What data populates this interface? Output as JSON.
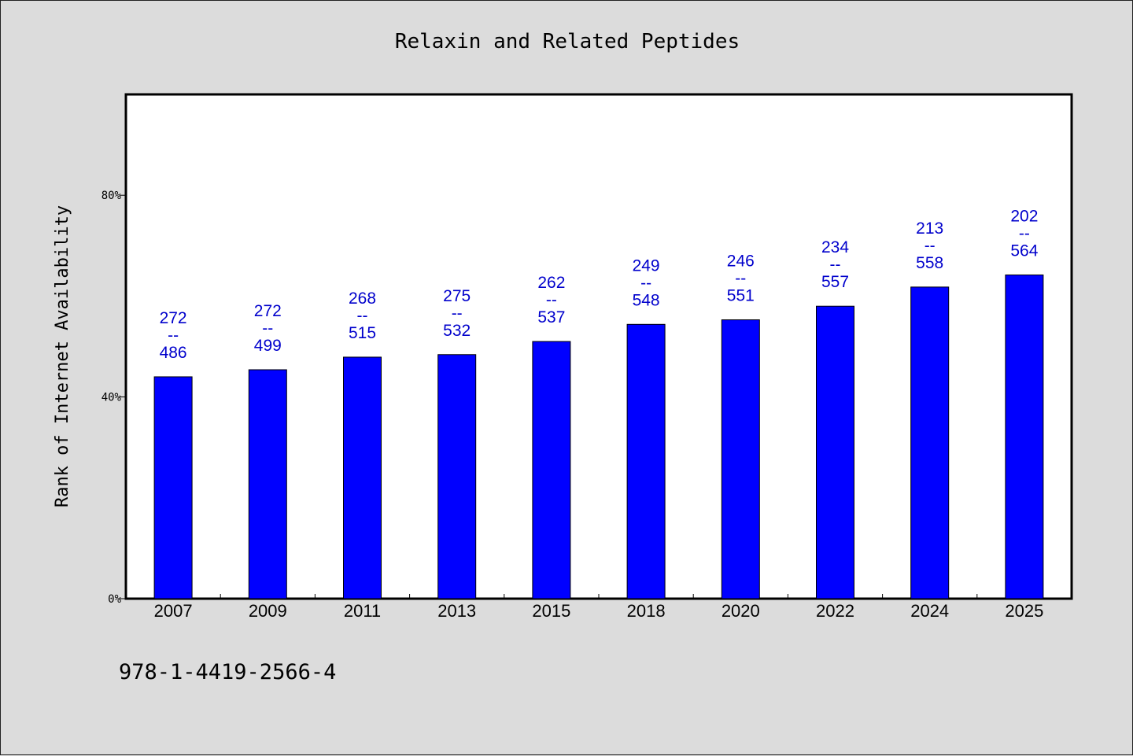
{
  "chart_data": {
    "type": "bar",
    "title": "Relaxin and Related Peptides",
    "xlabel": "",
    "ylabel": "Rank of Internet Availability",
    "ylim": [
      0,
      100
    ],
    "yticks": [
      {
        "value": 0,
        "label": "0%"
      },
      {
        "value": 40,
        "label": "40%"
      },
      {
        "value": 80,
        "label": "80%"
      }
    ],
    "categories": [
      "2007",
      "2009",
      "2011",
      "2013",
      "2015",
      "2018",
      "2020",
      "2022",
      "2024",
      "2025"
    ],
    "values": [
      44.0,
      45.4,
      47.9,
      48.4,
      51.0,
      54.4,
      55.3,
      58.0,
      61.8,
      64.2
    ],
    "bar_labels": [
      {
        "top": "272",
        "mid": "--",
        "bottom": "486"
      },
      {
        "top": "272",
        "mid": "--",
        "bottom": "499"
      },
      {
        "top": "268",
        "mid": "--",
        "bottom": "515"
      },
      {
        "top": "275",
        "mid": "--",
        "bottom": "532"
      },
      {
        "top": "262",
        "mid": "--",
        "bottom": "537"
      },
      {
        "top": "249",
        "mid": "--",
        "bottom": "548"
      },
      {
        "top": "246",
        "mid": "--",
        "bottom": "551"
      },
      {
        "top": "234",
        "mid": "--",
        "bottom": "557"
      },
      {
        "top": "213",
        "mid": "--",
        "bottom": "558"
      },
      {
        "top": "202",
        "mid": "--",
        "bottom": "564"
      }
    ],
    "bar_color": "#0000ff",
    "label_color": "#0000cc",
    "grid": false,
    "legend": "none"
  },
  "footer": {
    "isbn": "978-1-4419-2566-4"
  }
}
